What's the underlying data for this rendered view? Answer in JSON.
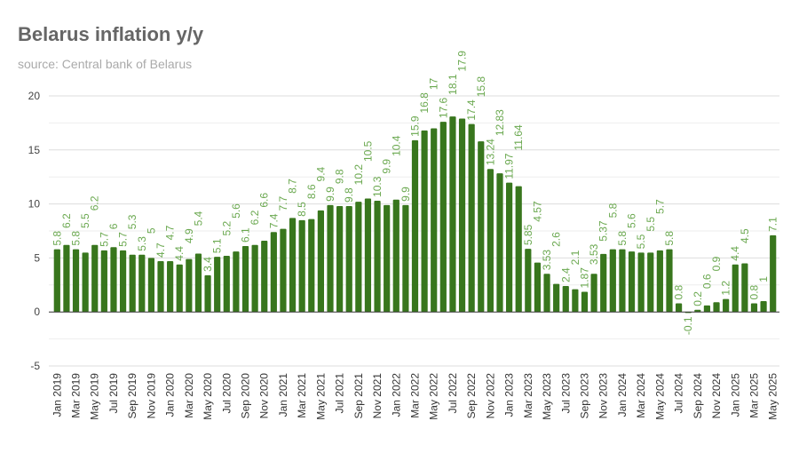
{
  "chart_data": {
    "type": "bar",
    "title": "Belarus inflation y/y",
    "subtitle": "source: Central bank of Belarus",
    "xlabel": "",
    "ylabel": "",
    "ylim": [
      -5,
      20
    ],
    "yticks": [
      -5,
      0,
      5,
      10,
      15,
      20
    ],
    "grid": true,
    "legend": "none",
    "bar_color": "#38761d",
    "label_color": "#6aa84f",
    "categories": [
      "Jan 2019",
      "Feb 2019",
      "Mar 2019",
      "Apr 2019",
      "May 2019",
      "Jun 2019",
      "Jul 2019",
      "Aug 2019",
      "Sep 2019",
      "Oct 2019",
      "Nov 2019",
      "Dec 2019",
      "Jan 2020",
      "Feb 2020",
      "Mar 2020",
      "Apr 2020",
      "May 2020",
      "Jun 2020",
      "Jul 2020",
      "Aug 2020",
      "Sep 2020",
      "Oct 2020",
      "Nov 2020",
      "Dec 2020",
      "Jan 2021",
      "Feb 2021",
      "Mar 2021",
      "Apr 2021",
      "May 2021",
      "Jun 2021",
      "Jul 2021",
      "Aug 2021",
      "Sep 2021",
      "Oct 2021",
      "Nov 2021",
      "Dec 2021",
      "Jan 2022",
      "Feb 2022",
      "Mar 2022",
      "Apr 2022",
      "May 2022",
      "Jun 2022",
      "Jul 2022",
      "Aug 2022",
      "Sep 2022",
      "Oct 2022",
      "Nov 2022",
      "Dec 2022",
      "Jan 2023",
      "Feb 2023",
      "Mar 2023",
      "Apr 2023",
      "May 2023",
      "Jun 2023",
      "Jul 2023",
      "Aug 2023",
      "Sep 2023",
      "Oct 2023",
      "Nov 2023",
      "Dec 2023",
      "Jan 2024",
      "Feb 2024",
      "Mar 2024",
      "Apr 2024",
      "May 2024",
      "Jun 2024",
      "Jul 2024",
      "Aug 2024",
      "Sep 2024",
      "Oct 2024",
      "Nov 2024",
      "Dec 2024",
      "Jan 2025",
      "Feb 2025",
      "Mar 2025",
      "Apr 2025",
      "May 2025"
    ],
    "xtick_labels": [
      "Jan 2019",
      "Mar 2019",
      "May 2019",
      "Jul 2019",
      "Sep 2019",
      "Nov 2019",
      "Jan 2020",
      "Mar 2020",
      "May 2020",
      "Jul 2020",
      "Sep 2020",
      "Nov 2020",
      "Jan 2021",
      "Mar 2021",
      "May 2021",
      "Jul 2021",
      "Sep 2021",
      "Nov 2021",
      "Jan 2022",
      "Mar 2022",
      "May 2022",
      "Jul 2022",
      "Sep 2022",
      "Nov 2022",
      "Jan 2023",
      "Mar 2023",
      "May 2023",
      "Jul 2023",
      "Sep 2023",
      "Nov 2023",
      "Jan 2024",
      "Mar 2024",
      "May 2024",
      "Jul 2024",
      "Sep 2024",
      "Nov 2024",
      "Jan 2025",
      "Mar 2025",
      "May 2025"
    ],
    "values": [
      5.8,
      6.2,
      5.8,
      5.5,
      6.2,
      5.7,
      6.0,
      5.7,
      5.3,
      5.3,
      5.0,
      4.7,
      4.7,
      4.4,
      4.9,
      5.4,
      3.4,
      5.1,
      5.2,
      5.6,
      6.1,
      6.2,
      6.6,
      7.4,
      7.7,
      8.7,
      8.5,
      8.6,
      9.4,
      9.9,
      9.8,
      9.8,
      10.2,
      10.5,
      10.3,
      9.9,
      10.4,
      9.9,
      15.9,
      16.8,
      17.0,
      17.6,
      18.1,
      17.9,
      17.4,
      15.8,
      13.24,
      12.83,
      11.97,
      11.64,
      5.85,
      4.57,
      3.53,
      2.6,
      2.4,
      2.1,
      1.87,
      3.53,
      5.37,
      5.8,
      5.8,
      5.6,
      5.5,
      5.5,
      5.7,
      5.8,
      0.8,
      -0.1,
      0.2,
      0.6,
      0.9,
      1.2,
      4.4,
      4.5,
      0.8,
      1.0,
      7.1
    ]
  }
}
